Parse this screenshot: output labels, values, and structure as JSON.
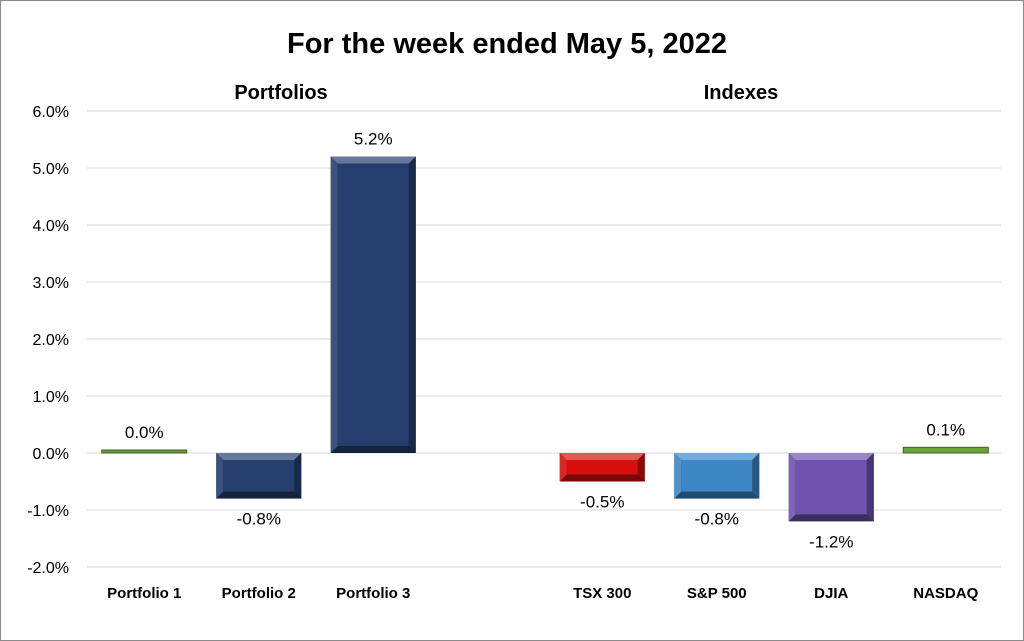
{
  "chart_data": {
    "type": "bar",
    "title": "For the week ended May 5, 2022",
    "groups": [
      {
        "label": "Portfolios",
        "categories": [
          "Portfolio 1",
          "Portfolio 2",
          "Portfolio 3"
        ]
      },
      {
        "label": "Indexes",
        "categories": [
          "TSX 300",
          "S&P 500",
          "DJIA",
          "NASDAQ"
        ]
      }
    ],
    "categories": [
      "Portfolio 1",
      "Portfolio 2",
      "Portfolio 3",
      "",
      "TSX 300",
      "S&P 500",
      "DJIA",
      "NASDAQ"
    ],
    "values": [
      0.0,
      -0.8,
      5.2,
      null,
      -0.5,
      -0.8,
      -1.2,
      0.1
    ],
    "data_labels": [
      "0.0%",
      "-0.8%",
      "5.2%",
      "",
      "-0.5%",
      "-0.8%",
      "-1.2%",
      "0.1%"
    ],
    "colors": [
      "#6a9a3a",
      "#263f6e",
      "#263f6e",
      "",
      "#d90f0f",
      "#3d87c6",
      "#6f53ae",
      "#6aa43a"
    ],
    "ylim": [
      -2.0,
      6.0
    ],
    "yticks": [
      "6.0%",
      "5.0%",
      "4.0%",
      "3.0%",
      "2.0%",
      "1.0%",
      "0.0%",
      "-1.0%",
      "-2.0%"
    ],
    "grid": true,
    "xlabel": "",
    "ylabel": ""
  }
}
